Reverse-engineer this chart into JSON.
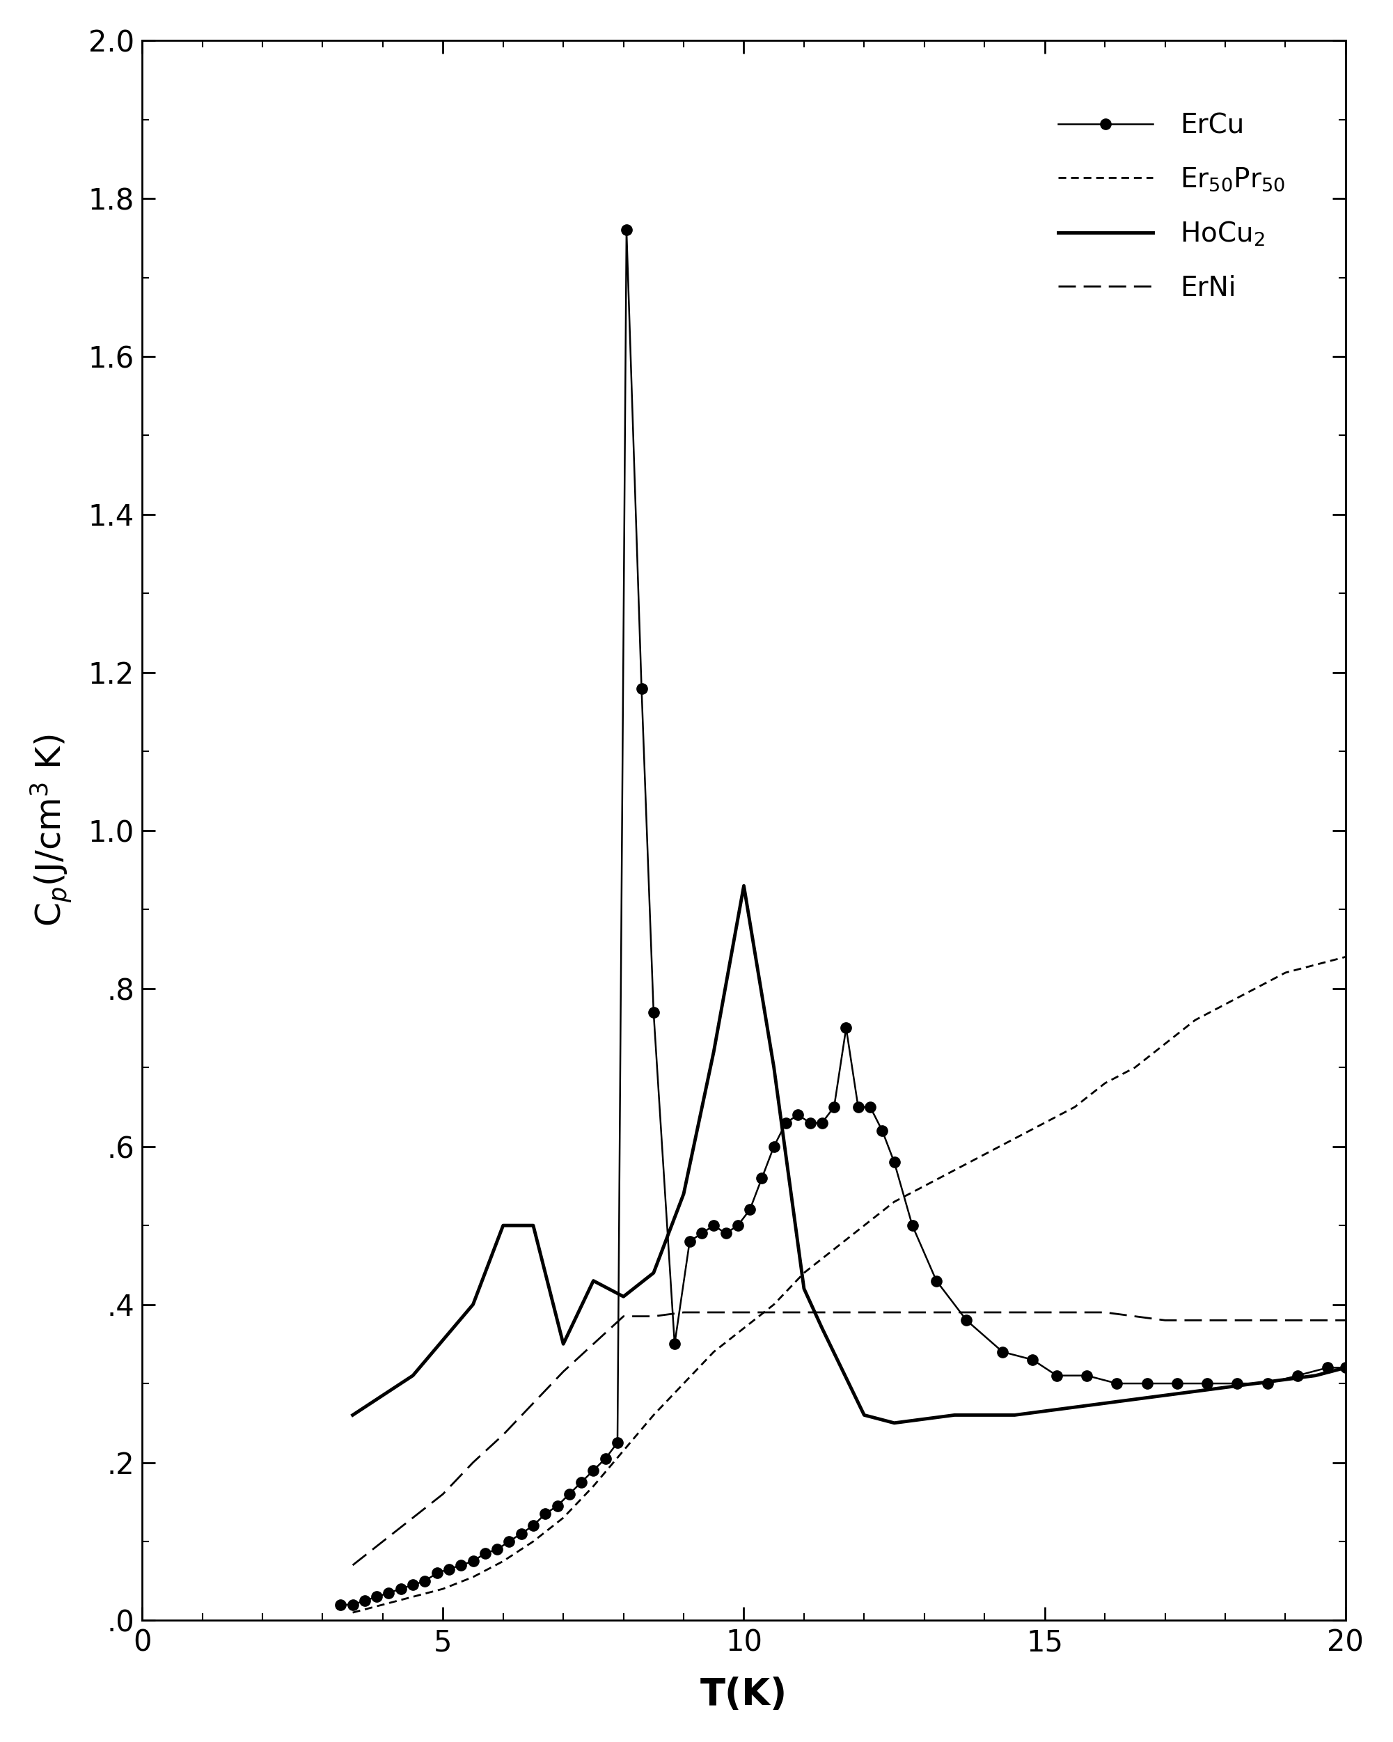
{
  "ErCu_x": [
    3.3,
    3.5,
    3.7,
    3.9,
    4.1,
    4.3,
    4.5,
    4.7,
    4.9,
    5.1,
    5.3,
    5.5,
    5.7,
    5.9,
    6.1,
    6.3,
    6.5,
    6.7,
    6.9,
    7.1,
    7.3,
    7.5,
    7.7,
    7.9,
    8.05,
    8.3,
    8.5,
    8.85,
    9.1,
    9.3,
    9.5,
    9.7,
    9.9,
    10.1,
    10.3,
    10.5,
    10.7,
    10.9,
    11.1,
    11.3,
    11.5,
    11.7,
    11.9,
    12.1,
    12.3,
    12.5,
    12.8,
    13.2,
    13.7,
    14.3,
    14.8,
    15.2,
    15.7,
    16.2,
    16.7,
    17.2,
    17.7,
    18.2,
    18.7,
    19.2,
    19.7,
    20.0
  ],
  "ErCu_y": [
    0.02,
    0.02,
    0.025,
    0.03,
    0.035,
    0.04,
    0.045,
    0.05,
    0.06,
    0.065,
    0.07,
    0.075,
    0.085,
    0.09,
    0.1,
    0.11,
    0.12,
    0.135,
    0.145,
    0.16,
    0.175,
    0.19,
    0.205,
    0.225,
    1.76,
    1.18,
    0.77,
    0.35,
    0.48,
    0.49,
    0.5,
    0.49,
    0.5,
    0.52,
    0.56,
    0.6,
    0.63,
    0.64,
    0.63,
    0.63,
    0.65,
    0.75,
    0.65,
    0.65,
    0.62,
    0.58,
    0.5,
    0.43,
    0.38,
    0.34,
    0.33,
    0.31,
    0.31,
    0.3,
    0.3,
    0.3,
    0.3,
    0.3,
    0.3,
    0.31,
    0.32,
    0.32
  ],
  "Er50Pr50_x": [
    3.5,
    4.0,
    4.5,
    5.0,
    5.5,
    6.0,
    6.5,
    7.0,
    7.5,
    8.0,
    8.5,
    9.0,
    9.5,
    10.0,
    10.5,
    11.0,
    11.5,
    12.0,
    12.5,
    13.0,
    13.5,
    14.0,
    14.5,
    15.0,
    15.5,
    16.0,
    16.5,
    17.0,
    17.5,
    18.0,
    18.5,
    19.0,
    19.5,
    20.0
  ],
  "Er50Pr50_y": [
    0.01,
    0.02,
    0.03,
    0.04,
    0.055,
    0.075,
    0.1,
    0.13,
    0.17,
    0.215,
    0.26,
    0.3,
    0.34,
    0.37,
    0.4,
    0.44,
    0.47,
    0.5,
    0.53,
    0.55,
    0.57,
    0.59,
    0.61,
    0.63,
    0.65,
    0.68,
    0.7,
    0.73,
    0.76,
    0.78,
    0.8,
    0.82,
    0.83,
    0.84
  ],
  "HoCu2_x": [
    3.5,
    4.5,
    5.5,
    6.0,
    6.5,
    7.0,
    7.5,
    8.0,
    8.5,
    9.0,
    9.5,
    10.0,
    10.5,
    11.0,
    11.3,
    12.0,
    12.5,
    13.5,
    14.5,
    15.5,
    16.5,
    17.5,
    18.5,
    19.5,
    20.0
  ],
  "HoCu2_y": [
    0.26,
    0.31,
    0.4,
    0.5,
    0.5,
    0.35,
    0.43,
    0.41,
    0.44,
    0.54,
    0.72,
    0.93,
    0.7,
    0.42,
    0.37,
    0.26,
    0.25,
    0.26,
    0.26,
    0.27,
    0.28,
    0.29,
    0.3,
    0.31,
    0.32
  ],
  "ErNi_x": [
    3.5,
    4.0,
    4.5,
    5.0,
    5.5,
    6.0,
    6.5,
    7.0,
    7.5,
    8.0,
    8.5,
    9.0,
    9.5,
    10.0,
    10.5,
    11.0,
    11.5,
    12.0,
    12.5,
    13.0,
    14.0,
    15.0,
    16.0,
    17.0,
    18.0,
    19.0,
    20.0
  ],
  "ErNi_y": [
    0.07,
    0.1,
    0.13,
    0.16,
    0.2,
    0.235,
    0.275,
    0.315,
    0.35,
    0.385,
    0.385,
    0.39,
    0.39,
    0.39,
    0.39,
    0.39,
    0.39,
    0.39,
    0.39,
    0.39,
    0.39,
    0.39,
    0.39,
    0.38,
    0.38,
    0.38,
    0.38
  ],
  "xlim": [
    0,
    20
  ],
  "ylim": [
    0.0,
    2.0
  ],
  "xlabel": "T(K)",
  "ylabel": "C$_p$(J/cm$^3$ K)",
  "legend_labels": [
    "ErCu",
    "Er$_{50}$Pr$_{50}$",
    "HoCu$_2$",
    "ErNi"
  ],
  "background_color": "#ffffff",
  "line_color": "#000000",
  "yticks": [
    0.0,
    0.2,
    0.4,
    0.6,
    0.8,
    1.0,
    1.2,
    1.4,
    1.6,
    1.8,
    2.0
  ],
  "ytick_labels": [
    ".0",
    ".2",
    ".4",
    ".6",
    ".8",
    "1.0",
    "1.2",
    "1.4",
    "1.6",
    "1.8",
    "2.0"
  ],
  "xticks": [
    0,
    5,
    10,
    15,
    20
  ]
}
